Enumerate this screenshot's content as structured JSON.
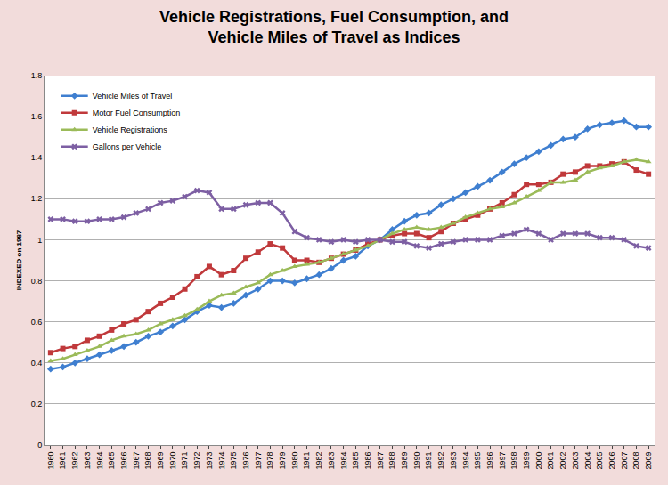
{
  "chart_data": {
    "type": "line",
    "title": "Vehicle Registrations, Fuel Consumption, and\nVehicle Miles of Travel as Indices",
    "y_label": "INDEXED on 1987",
    "categories": [
      "1960",
      "1961",
      "1962",
      "1963",
      "1964",
      "1965",
      "1966",
      "1967",
      "1968",
      "1969",
      "1970",
      "1971",
      "1972",
      "1973",
      "1974",
      "1975",
      "1976",
      "1977",
      "1978",
      "1979",
      "1980",
      "1981",
      "1982",
      "1983",
      "1984",
      "1985",
      "1986",
      "1987",
      "1988",
      "1989",
      "1990",
      "1991",
      "1992",
      "1993",
      "1994",
      "1995",
      "1996",
      "1997",
      "1998",
      "1999",
      "2000",
      "2001",
      "2002",
      "2003",
      "2004",
      "2005",
      "2006",
      "2007",
      "2008",
      "2009"
    ],
    "series": [
      {
        "name": "Vehicle Miles of Travel",
        "color": "#3f7fd0",
        "marker": "diamond",
        "values": [
          0.37,
          0.38,
          0.4,
          0.42,
          0.44,
          0.46,
          0.48,
          0.5,
          0.53,
          0.55,
          0.58,
          0.61,
          0.65,
          0.68,
          0.67,
          0.69,
          0.73,
          0.76,
          0.8,
          0.8,
          0.79,
          0.81,
          0.83,
          0.86,
          0.9,
          0.92,
          0.97,
          1.0,
          1.05,
          1.09,
          1.12,
          1.13,
          1.17,
          1.2,
          1.23,
          1.26,
          1.29,
          1.33,
          1.37,
          1.4,
          1.43,
          1.46,
          1.49,
          1.5,
          1.54,
          1.56,
          1.57,
          1.58,
          1.55,
          1.55
        ]
      },
      {
        "name": "Motor Fuel Consumption",
        "color": "#c0393b",
        "marker": "square",
        "values": [
          0.45,
          0.47,
          0.48,
          0.51,
          0.53,
          0.56,
          0.59,
          0.61,
          0.65,
          0.69,
          0.72,
          0.76,
          0.82,
          0.87,
          0.83,
          0.85,
          0.91,
          0.94,
          0.98,
          0.96,
          0.9,
          0.9,
          0.89,
          0.91,
          0.93,
          0.95,
          0.98,
          1.0,
          1.02,
          1.03,
          1.03,
          1.01,
          1.04,
          1.08,
          1.1,
          1.12,
          1.15,
          1.18,
          1.22,
          1.27,
          1.27,
          1.28,
          1.32,
          1.33,
          1.36,
          1.36,
          1.37,
          1.38,
          1.34,
          1.32
        ]
      },
      {
        "name": "Vehicle Registrations",
        "color": "#9bbb59",
        "marker": "triangle-up",
        "values": [
          0.41,
          0.42,
          0.44,
          0.46,
          0.48,
          0.51,
          0.53,
          0.54,
          0.56,
          0.59,
          0.61,
          0.63,
          0.66,
          0.7,
          0.73,
          0.74,
          0.77,
          0.79,
          0.83,
          0.85,
          0.87,
          0.88,
          0.89,
          0.91,
          0.93,
          0.95,
          0.97,
          1.0,
          1.03,
          1.05,
          1.06,
          1.05,
          1.06,
          1.08,
          1.11,
          1.13,
          1.15,
          1.16,
          1.18,
          1.21,
          1.24,
          1.28,
          1.28,
          1.29,
          1.33,
          1.35,
          1.36,
          1.38,
          1.39,
          1.38
        ]
      },
      {
        "name": "Gallons per Vehicle",
        "color": "#7d5fa3",
        "marker": "x",
        "values": [
          1.1,
          1.1,
          1.09,
          1.09,
          1.1,
          1.1,
          1.11,
          1.13,
          1.15,
          1.18,
          1.19,
          1.21,
          1.24,
          1.23,
          1.15,
          1.15,
          1.17,
          1.18,
          1.18,
          1.13,
          1.04,
          1.01,
          1.0,
          0.99,
          1.0,
          0.99,
          1.0,
          1.0,
          0.99,
          0.99,
          0.97,
          0.96,
          0.98,
          0.99,
          1.0,
          1.0,
          1.0,
          1.02,
          1.03,
          1.05,
          1.03,
          1.0,
          1.03,
          1.03,
          1.03,
          1.01,
          1.01,
          1.0,
          0.97,
          0.96
        ]
      }
    ],
    "ylim": [
      0,
      1.8
    ],
    "yticks": [
      0,
      0.2,
      0.4,
      0.6,
      0.8,
      1,
      1.2,
      1.4,
      1.6,
      1.8
    ],
    "grid": true,
    "legend": "upper left"
  }
}
